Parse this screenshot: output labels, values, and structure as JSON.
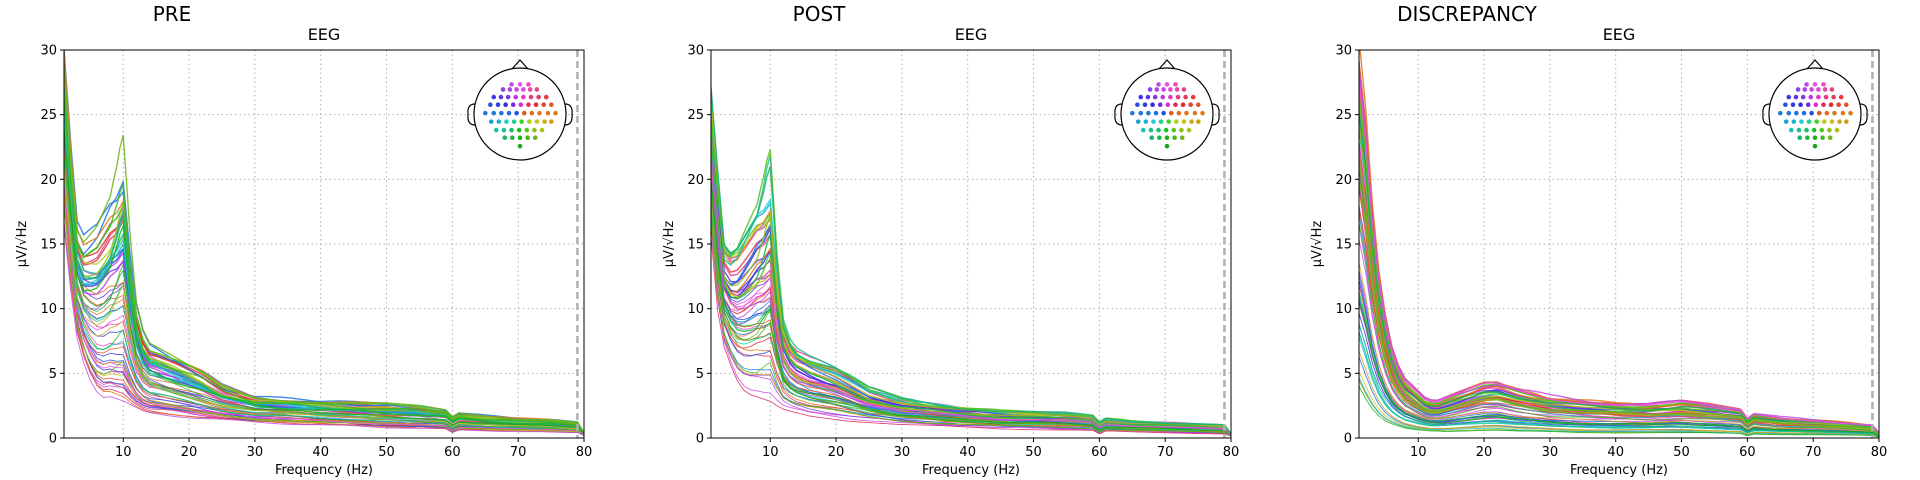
{
  "chart_data": [
    {
      "type": "line",
      "panel_title": "PRE",
      "title": "EEG",
      "xlabel": "Frequency (Hz)",
      "ylabel": "µV/√Hz",
      "xlim": [
        1,
        80
      ],
      "ylim": [
        0,
        30
      ],
      "xticks": [
        10,
        20,
        30,
        40,
        50,
        60,
        70,
        80
      ],
      "yticks": [
        0,
        5,
        10,
        15,
        20,
        25,
        30
      ],
      "grid": true,
      "legend": "topomap sensor inset, top-right",
      "vline_x": 79,
      "series_count": 60,
      "profile": {
        "x": [
          1,
          2,
          3,
          4,
          5,
          6,
          7,
          8,
          9,
          10,
          11,
          12,
          13,
          14,
          16,
          18,
          20,
          22,
          25,
          30,
          35,
          40,
          45,
          50,
          55,
          59,
          60,
          61,
          65,
          70,
          75,
          79,
          80
        ],
        "low": [
          17,
          12,
          8,
          6,
          4.5,
          3.5,
          3,
          3,
          2.8,
          2.6,
          2.4,
          2.2,
          2,
          1.9,
          1.8,
          1.7,
          1.6,
          1.5,
          1.4,
          1.2,
          1.1,
          1.0,
          0.9,
          0.8,
          0.75,
          0.7,
          0.4,
          0.6,
          0.55,
          0.5,
          0.45,
          0.4,
          0.2
        ],
        "high": [
          29,
          22,
          16,
          15,
          15.5,
          16,
          17,
          18,
          18.5,
          19.5,
          14,
          10,
          8,
          7,
          6.5,
          6,
          5.5,
          5,
          4,
          3.2,
          3,
          2.8,
          2.7,
          2.6,
          2.4,
          2.1,
          1.6,
          1.9,
          1.7,
          1.5,
          1.4,
          1.2,
          0.4
        ]
      }
    },
    {
      "type": "line",
      "panel_title": "POST",
      "title": "EEG",
      "xlabel": "Frequency (Hz)",
      "ylabel": "µV/√Hz",
      "xlim": [
        1,
        80
      ],
      "ylim": [
        0,
        30
      ],
      "xticks": [
        10,
        20,
        30,
        40,
        50,
        60,
        70,
        80
      ],
      "yticks": [
        0,
        5,
        10,
        15,
        20,
        25,
        30
      ],
      "grid": true,
      "legend": "topomap sensor inset, top-right",
      "vline_x": 79,
      "series_count": 60,
      "profile": {
        "x": [
          1,
          2,
          3,
          4,
          5,
          6,
          7,
          8,
          9,
          10,
          11,
          12,
          13,
          14,
          16,
          18,
          20,
          22,
          25,
          30,
          35,
          40,
          45,
          50,
          55,
          59,
          60,
          61,
          65,
          70,
          75,
          79,
          80
        ],
        "low": [
          16,
          10,
          7,
          5.5,
          4.2,
          3.4,
          3,
          2.8,
          2.6,
          2.4,
          2.2,
          2,
          1.9,
          1.8,
          1.6,
          1.5,
          1.4,
          1.3,
          1.2,
          1.0,
          0.9,
          0.8,
          0.7,
          0.65,
          0.6,
          0.55,
          0.3,
          0.5,
          0.45,
          0.4,
          0.35,
          0.3,
          0.15
        ],
        "high": [
          26,
          20,
          14.5,
          14,
          14.5,
          15.5,
          16.5,
          17.5,
          18,
          19,
          13,
          9,
          7.5,
          6.8,
          6.2,
          5.8,
          5.4,
          4.8,
          3.8,
          3.0,
          2.6,
          2.3,
          2.1,
          2.0,
          1.9,
          1.7,
          1.2,
          1.5,
          1.3,
          1.2,
          1.1,
          1.0,
          0.3
        ]
      }
    },
    {
      "type": "line",
      "panel_title": "DISCREPANCY",
      "title": "EEG",
      "xlabel": "Frequency (Hz)",
      "ylabel": "µV/√Hz",
      "xlim": [
        1,
        80
      ],
      "ylim": [
        0,
        30
      ],
      "xticks": [
        10,
        20,
        30,
        40,
        50,
        60,
        70,
        80
      ],
      "yticks": [
        0,
        5,
        10,
        15,
        20,
        25,
        30
      ],
      "grid": true,
      "legend": "topomap sensor inset, top-right",
      "vline_x": 79,
      "series_count": 60,
      "profile": {
        "x": [
          1,
          2,
          3,
          4,
          5,
          6,
          7,
          8,
          9,
          10,
          11,
          12,
          13,
          14,
          16,
          18,
          20,
          22,
          25,
          30,
          35,
          40,
          45,
          50,
          55,
          59,
          60,
          61,
          65,
          70,
          75,
          79,
          80
        ],
        "low": [
          2.5,
          1.8,
          1.4,
          1.1,
          0.9,
          0.8,
          0.7,
          0.6,
          0.55,
          0.5,
          0.5,
          0.45,
          0.45,
          0.4,
          0.4,
          0.4,
          0.4,
          0.4,
          0.35,
          0.35,
          0.3,
          0.3,
          0.3,
          0.3,
          0.28,
          0.25,
          0.1,
          0.22,
          0.2,
          0.2,
          0.18,
          0.15,
          0.05
        ],
        "high": [
          30,
          25,
          18,
          13,
          9.5,
          7,
          5.5,
          4.5,
          4,
          3.5,
          3,
          2.8,
          2.8,
          3,
          3.4,
          3.8,
          4.2,
          4.3,
          3.8,
          3.2,
          2.9,
          2.7,
          2.6,
          2.8,
          2.5,
          2.2,
          1.5,
          1.9,
          1.6,
          1.4,
          1.2,
          1.0,
          0.4
        ]
      }
    }
  ]
}
